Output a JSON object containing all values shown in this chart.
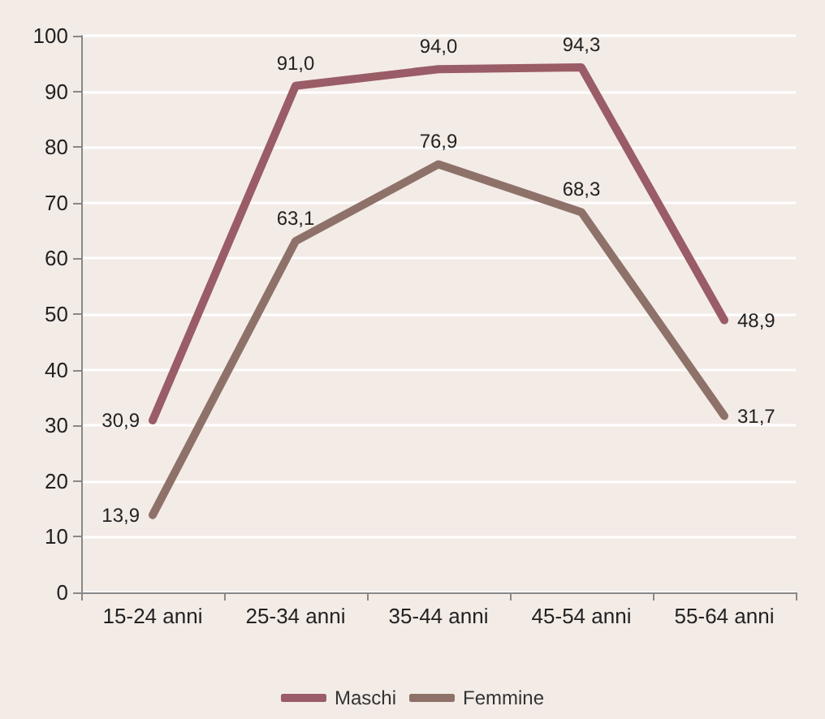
{
  "chart_data": {
    "type": "line",
    "categories": [
      "15-24 anni",
      "25-34 anni",
      "35-44 anni",
      "45-54 anni",
      "55-64 anni"
    ],
    "series": [
      {
        "name": "Maschi",
        "color": "#9a5c66",
        "values": [
          30.9,
          91.0,
          94.0,
          94.3,
          48.9
        ],
        "value_labels": [
          "30,9",
          "91,0",
          "94,0",
          "94,3",
          "48,9"
        ]
      },
      {
        "name": "Femmine",
        "color": "#8e7269",
        "values": [
          13.9,
          63.1,
          76.9,
          68.3,
          31.7
        ],
        "value_labels": [
          "13,9",
          "63,1",
          "76,9",
          "68,3",
          "31,7"
        ]
      }
    ],
    "ylim": [
      0,
      100
    ],
    "yticks": [
      0,
      10,
      20,
      30,
      40,
      50,
      60,
      70,
      80,
      90,
      100
    ],
    "grid": "y",
    "legend": "bottom",
    "marker": "none",
    "line_style": "solid"
  }
}
